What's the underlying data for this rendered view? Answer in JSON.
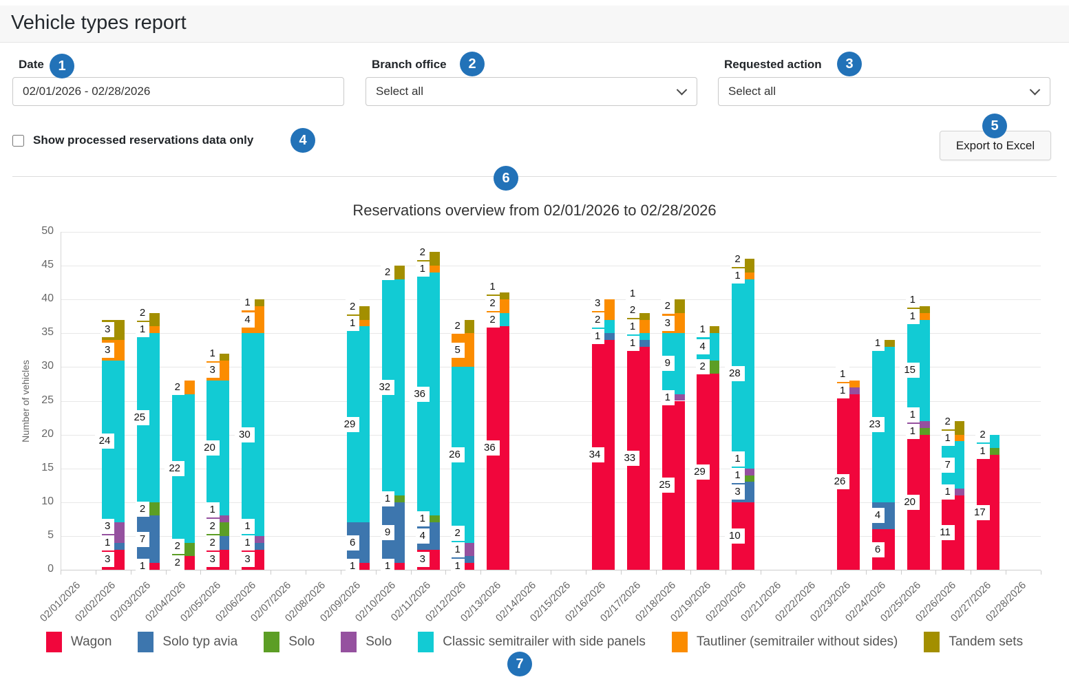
{
  "page": {
    "title": "Vehicle types report"
  },
  "filters": {
    "date": {
      "label": "Date",
      "value": "02/01/2026 - 02/28/2026"
    },
    "branch_office": {
      "label": "Branch office",
      "value": "Select all"
    },
    "requested_action": {
      "label": "Requested action",
      "value": "Select all"
    },
    "processed_only": {
      "label": "Show processed reservations data only",
      "checked": false
    },
    "export_label": "Export to Excel"
  },
  "annotations": {
    "badges": [
      "1",
      "2",
      "3",
      "4",
      "5",
      "6",
      "7"
    ]
  },
  "colors": {
    "badge": "#2272b8",
    "wagon_red": "#F1063C",
    "solo_avia_blue": "#3D76AE",
    "solo_green": "#5C9E25",
    "solo_purple": "#95519F",
    "classic_cyan": "#12CBD4",
    "tautliner_orange": "#FB8C00",
    "tandem_olive": "#A38F00"
  },
  "chart_data": {
    "type": "bar",
    "stacked": true,
    "title": "Reservations overview from 02/01/2026 to 02/28/2026",
    "xlabel": "",
    "ylabel": "Number of vehicles",
    "ylim": [
      0,
      50
    ],
    "ytick_step": 5,
    "yticks": [
      "0",
      "5",
      "10",
      "15",
      "20",
      "25",
      "30",
      "35",
      "40",
      "45",
      "50"
    ],
    "grid": true,
    "legend_position": "bottom",
    "categories": [
      "02/01/2026",
      "02/02/2026",
      "02/03/2026",
      "02/04/2026",
      "02/05/2026",
      "02/06/2026",
      "02/07/2026",
      "02/08/2026",
      "02/09/2026",
      "02/10/2026",
      "02/11/2026",
      "02/12/2026",
      "02/13/2026",
      "02/14/2026",
      "02/15/2026",
      "02/16/2026",
      "02/17/2026",
      "02/18/2026",
      "02/19/2026",
      "02/20/2026",
      "02/21/2026",
      "02/22/2026",
      "02/23/2026",
      "02/24/2026",
      "02/25/2026",
      "02/26/2026",
      "02/27/2026",
      "02/28/2026"
    ],
    "series": [
      {
        "name": "Wagon",
        "color": "#F1063C",
        "values": [
          0,
          3,
          1,
          2,
          3,
          3,
          0,
          0,
          1,
          1,
          3,
          1,
          36,
          0,
          0,
          34,
          33,
          25,
          29,
          10,
          0,
          0,
          26,
          6,
          20,
          11,
          17,
          0
        ]
      },
      {
        "name": "Solo typ avia",
        "color": "#3D76AE",
        "values": [
          0,
          1,
          7,
          0,
          2,
          1,
          0,
          0,
          6,
          9,
          4,
          1,
          0,
          0,
          0,
          1,
          1,
          0,
          0,
          3,
          0,
          0,
          0,
          4,
          0,
          0,
          0,
          0
        ]
      },
      {
        "name": "Solo",
        "color": "#5C9E25",
        "values": [
          0,
          0,
          2,
          2,
          2,
          0,
          0,
          0,
          0,
          1,
          1,
          0,
          0,
          0,
          0,
          0,
          0,
          0,
          2,
          1,
          0,
          0,
          0,
          0,
          1,
          0,
          1,
          0
        ]
      },
      {
        "name": "Solo",
        "color": "#95519F",
        "values": [
          0,
          3,
          0,
          0,
          1,
          1,
          0,
          0,
          0,
          0,
          0,
          2,
          0,
          0,
          0,
          0,
          0,
          1,
          0,
          1,
          0,
          0,
          1,
          0,
          1,
          1,
          0,
          0
        ]
      },
      {
        "name": "Classic semitrailer with side panels",
        "color": "#12CBD4",
        "values": [
          0,
          24,
          25,
          22,
          20,
          30,
          0,
          0,
          29,
          32,
          36,
          26,
          2,
          0,
          0,
          2,
          1,
          9,
          4,
          28,
          0,
          0,
          0,
          23,
          15,
          7,
          2,
          0
        ]
      },
      {
        "name": "Tautliner (semitrailer without sides)",
        "color": "#FB8C00",
        "values": [
          0,
          3,
          1,
          2,
          3,
          4,
          0,
          0,
          1,
          0,
          1,
          5,
          2,
          0,
          0,
          3,
          2,
          3,
          0,
          1,
          0,
          0,
          1,
          0,
          1,
          1,
          0,
          0
        ]
      },
      {
        "name": "Tandem sets",
        "color": "#A38F00",
        "values": [
          0,
          3,
          2,
          0,
          1,
          1,
          0,
          0,
          2,
          2,
          2,
          2,
          1,
          0,
          0,
          0,
          1,
          2,
          1,
          2,
          0,
          0,
          0,
          1,
          1,
          2,
          0,
          0
        ]
      }
    ]
  }
}
